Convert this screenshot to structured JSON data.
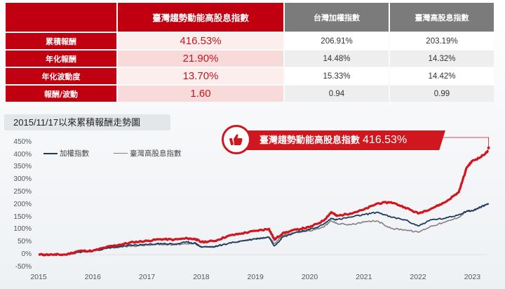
{
  "table": {
    "headers": [
      "",
      "臺灣趨勢動能高股息指數",
      "台灣加權指數",
      "臺灣高股息指數"
    ],
    "rows": [
      {
        "label": "累積報酬",
        "values": [
          "416.53%",
          "206.91%",
          "203.19%"
        ]
      },
      {
        "label": "年化報酬",
        "values": [
          "21.90%",
          "14.48%",
          "14.32%"
        ]
      },
      {
        "label": "年化波動度",
        "values": [
          "13.70%",
          "15.33%",
          "14.42%"
        ]
      },
      {
        "label": "報酬/波動",
        "values": [
          "1.60",
          "0.94",
          "0.99"
        ]
      }
    ]
  },
  "chart_title": "2015/11/17以來累積報酬走勢圖",
  "callout": {
    "label": "臺灣趨勢動能高股息指數",
    "value": "416.53%",
    "icon": "thumbs-up-icon"
  },
  "legend": [
    {
      "name": "加權指數",
      "color": "#1f3a5f"
    },
    {
      "name": "臺灣高股息指數",
      "color": "#808080"
    }
  ],
  "colors": {
    "momentum": "#d0171f",
    "taiex": "#1f3a5f",
    "high_dividend": "#808080",
    "header_red": "#c00011",
    "header_gray": "#7b7b7b"
  },
  "chart_data": {
    "type": "line",
    "title": "2015/11/17以來累積報酬走勢圖",
    "xlabel": "",
    "ylabel": "",
    "ylim": [
      -50,
      450
    ],
    "yticks": [
      "450%",
      "400%",
      "350%",
      "300%",
      "250%",
      "200%",
      "150%",
      "100%",
      "50%",
      "0%",
      "-50%"
    ],
    "xticks": [
      "2015",
      "2016",
      "2017",
      "2018",
      "2019",
      "2020",
      "2021",
      "2022",
      "2023"
    ],
    "grid": false,
    "legend_position": "top-left",
    "x": [
      2015.0,
      2015.25,
      2015.5,
      2015.75,
      2016.0,
      2016.25,
      2016.5,
      2016.75,
      2017.0,
      2017.25,
      2017.5,
      2017.75,
      2017.9,
      2018.0,
      2018.25,
      2018.5,
      2018.75,
      2019.0,
      2019.25,
      2019.35,
      2019.5,
      2019.75,
      2020.0,
      2020.25,
      2020.4,
      2020.5,
      2020.75,
      2021.0,
      2021.25,
      2021.5,
      2021.75,
      2022.0,
      2022.25,
      2022.5,
      2022.75,
      2022.9,
      2023.0,
      2023.15,
      2023.3
    ],
    "series": [
      {
        "name": "臺灣趨勢動能高股息指數",
        "values": [
          0,
          0,
          0,
          15,
          15,
          30,
          40,
          50,
          55,
          62,
          60,
          65,
          62,
          50,
          55,
          75,
          85,
          95,
          103,
          60,
          85,
          100,
          110,
          135,
          170,
          155,
          165,
          180,
          205,
          210,
          190,
          165,
          185,
          210,
          250,
          350,
          375,
          390,
          416
        ]
      },
      {
        "name": "加權指數",
        "values": [
          0,
          0,
          -2,
          10,
          15,
          25,
          33,
          38,
          40,
          45,
          42,
          50,
          45,
          30,
          32,
          45,
          55,
          63,
          70,
          35,
          70,
          90,
          100,
          120,
          145,
          140,
          150,
          160,
          170,
          150,
          140,
          115,
          140,
          145,
          160,
          175,
          175,
          190,
          205
        ]
      },
      {
        "name": "臺灣高股息指數",
        "values": [
          0,
          0,
          -2,
          10,
          15,
          25,
          30,
          35,
          38,
          40,
          40,
          45,
          43,
          32,
          30,
          45,
          55,
          63,
          70,
          45,
          75,
          90,
          95,
          110,
          135,
          125,
          120,
          130,
          135,
          105,
          100,
          90,
          115,
          130,
          150,
          175,
          175,
          190,
          203
        ]
      }
    ]
  }
}
